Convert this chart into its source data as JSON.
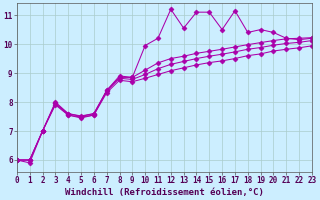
{
  "x": [
    0,
    1,
    2,
    3,
    4,
    5,
    6,
    7,
    8,
    9,
    10,
    11,
    12,
    13,
    14,
    15,
    16,
    17,
    18,
    19,
    20,
    21,
    22,
    23
  ],
  "line1": [
    6.0,
    5.9,
    7.0,
    7.95,
    7.55,
    7.45,
    7.55,
    8.4,
    8.85,
    8.85,
    9.95,
    10.2,
    11.2,
    10.55,
    11.1,
    11.1,
    10.5,
    11.15,
    10.4,
    10.5,
    10.4,
    10.2,
    10.15,
    10.2
  ],
  "line2": [
    6.0,
    6.0,
    7.0,
    8.0,
    7.6,
    7.5,
    7.6,
    8.4,
    8.9,
    8.85,
    9.1,
    9.35,
    9.5,
    9.58,
    9.68,
    9.75,
    9.82,
    9.9,
    9.98,
    10.05,
    10.12,
    10.18,
    10.2,
    10.22
  ],
  "line3": [
    6.0,
    6.0,
    7.0,
    7.95,
    7.6,
    7.52,
    7.6,
    8.38,
    8.82,
    8.78,
    8.95,
    9.15,
    9.3,
    9.4,
    9.5,
    9.58,
    9.65,
    9.73,
    9.82,
    9.88,
    9.96,
    10.02,
    10.06,
    10.12
  ],
  "line4": [
    6.0,
    6.0,
    7.0,
    7.9,
    7.55,
    7.48,
    7.55,
    8.32,
    8.75,
    8.7,
    8.82,
    8.95,
    9.08,
    9.18,
    9.28,
    9.36,
    9.42,
    9.5,
    9.6,
    9.66,
    9.76,
    9.82,
    9.87,
    9.94
  ],
  "line_color": "#aa00aa",
  "bg_color": "#cceeff",
  "grid_color": "#aacccc",
  "ylim": [
    5.6,
    11.4
  ],
  "xlim": [
    0,
    23
  ],
  "yticks": [
    6,
    7,
    8,
    9,
    10,
    11
  ],
  "xticks": [
    0,
    1,
    2,
    3,
    4,
    5,
    6,
    7,
    8,
    9,
    10,
    11,
    12,
    13,
    14,
    15,
    16,
    17,
    18,
    19,
    20,
    21,
    22,
    23
  ],
  "xlabel": "Windchill (Refroidissement éolien,°C)",
  "xlabel_fontsize": 6.5,
  "tick_fontsize": 5.5,
  "marker": "D",
  "marker_size": 2.5,
  "linewidth": 0.75
}
